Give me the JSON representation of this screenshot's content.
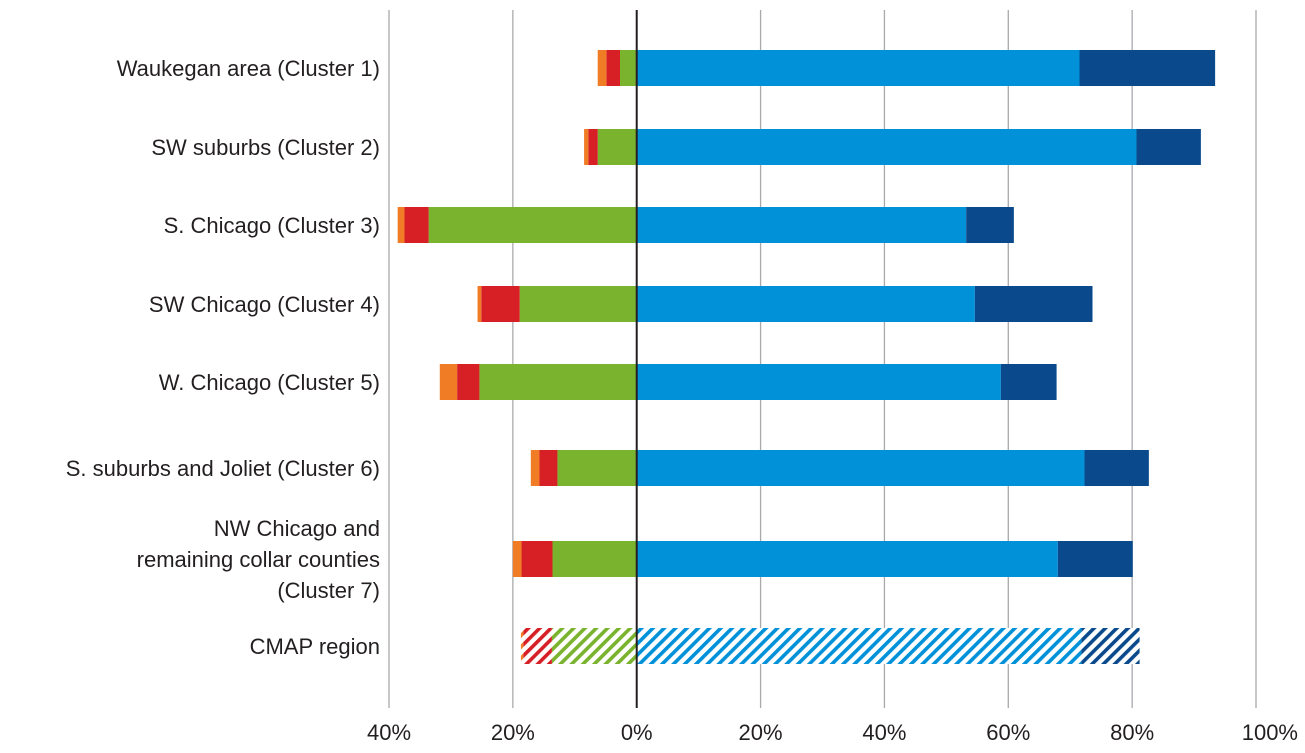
{
  "chart_data": {
    "type": "bar",
    "orientation": "horizontal",
    "stacked": "diverging",
    "categories": [
      "Waukegan area (Cluster 1)",
      "SW suburbs (Cluster 2)",
      "S. Chicago (Cluster 3)",
      "SW Chicago (Cluster 4)",
      "W. Chicago (Cluster 5)",
      "S. suburbs and Joliet (Cluster 6)",
      "NW Chicago and remaining collar counties (Cluster 7)",
      "CMAP region"
    ],
    "category_lines": [
      [
        "Waukegan area (Cluster 1)"
      ],
      [
        "SW suburbs (Cluster 2)"
      ],
      [
        "S. Chicago (Cluster 3)"
      ],
      [
        "SW Chicago (Cluster 4)"
      ],
      [
        "W. Chicago (Cluster 5)"
      ],
      [
        "S. suburbs and Joliet (Cluster 6)"
      ],
      [
        "NW Chicago and",
        "remaining collar counties",
        "(Cluster 7)"
      ],
      [
        "CMAP region"
      ]
    ],
    "series": [
      {
        "side": "positive",
        "color": "#0091d9",
        "values": [
          71.5,
          80.7,
          53.2,
          54.6,
          58.8,
          72.3,
          68.0,
          71.8
        ]
      },
      {
        "side": "positive",
        "color": "#0a4a8c",
        "values": [
          21.9,
          10.4,
          7.7,
          19.0,
          9.0,
          10.4,
          12.1,
          9.4
        ]
      },
      {
        "side": "negative",
        "color": "#7ab32e",
        "values": [
          2.7,
          6.3,
          33.6,
          18.9,
          25.4,
          12.8,
          13.6,
          13.7
        ]
      },
      {
        "side": "negative",
        "color": "#d71f26",
        "values": [
          2.2,
          1.5,
          3.9,
          6.2,
          3.6,
          2.9,
          5.0,
          4.6
        ]
      },
      {
        "side": "negative",
        "color": "#f07d26",
        "values": [
          1.4,
          0.7,
          1.1,
          0.6,
          2.8,
          1.4,
          1.4,
          0.4
        ]
      }
    ],
    "hatched_categories": [
      "CMAP region"
    ],
    "xlim": [
      -40,
      100
    ],
    "x_ticks": [
      -40,
      -20,
      0,
      20,
      40,
      60,
      80,
      100
    ],
    "x_tick_labels": [
      "40%",
      "20%",
      "0%",
      "20%",
      "40%",
      "60%",
      "80%",
      "100%"
    ],
    "grid": true,
    "legend": "none"
  }
}
